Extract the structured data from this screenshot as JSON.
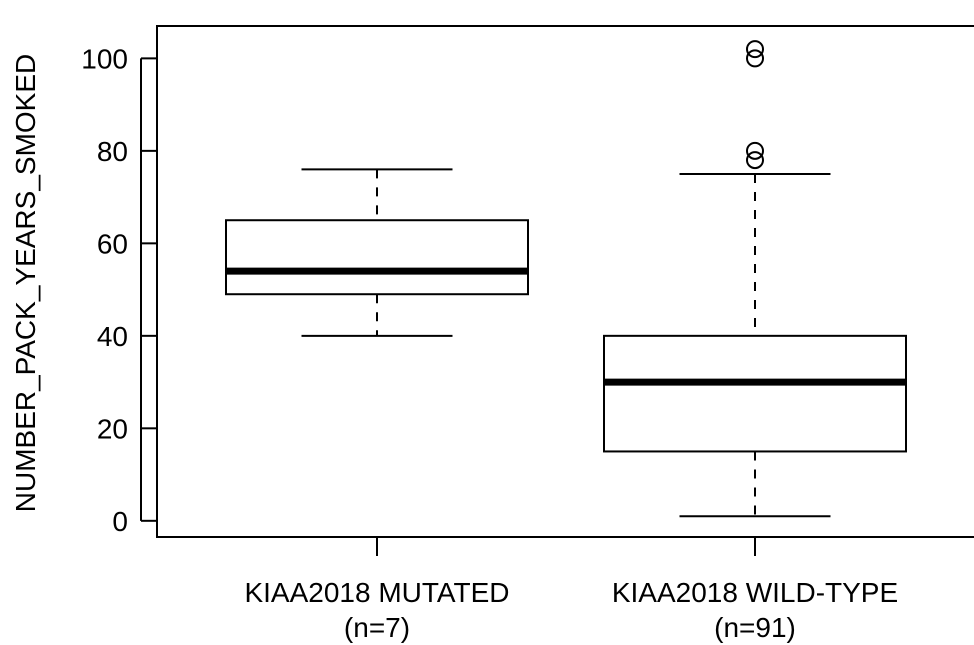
{
  "chart_data": {
    "type": "boxplot",
    "title": "",
    "xlabel": "",
    "ylabel": "NUMBER_PACK_YEARS_SMOKED",
    "ylim": [
      -3.5,
      107
    ],
    "yticks": [
      0,
      20,
      40,
      60,
      80,
      100
    ],
    "grid": false,
    "categories": [
      {
        "name": "KIAA2018 MUTATED",
        "n_label": "(n=7)"
      },
      {
        "name": "KIAA2018 WILD-TYPE",
        "n_label": "(n=91)"
      }
    ],
    "series": [
      {
        "category": "KIAA2018 MUTATED",
        "whisker_low": 40,
        "q1": 49,
        "median": 54,
        "q3": 65,
        "whisker_high": 76,
        "outliers": []
      },
      {
        "category": "KIAA2018 WILD-TYPE",
        "whisker_low": 1,
        "q1": 15,
        "median": 30,
        "q3": 40,
        "whisker_high": 75,
        "outliers": [
          78,
          80,
          100,
          102
        ]
      }
    ]
  }
}
